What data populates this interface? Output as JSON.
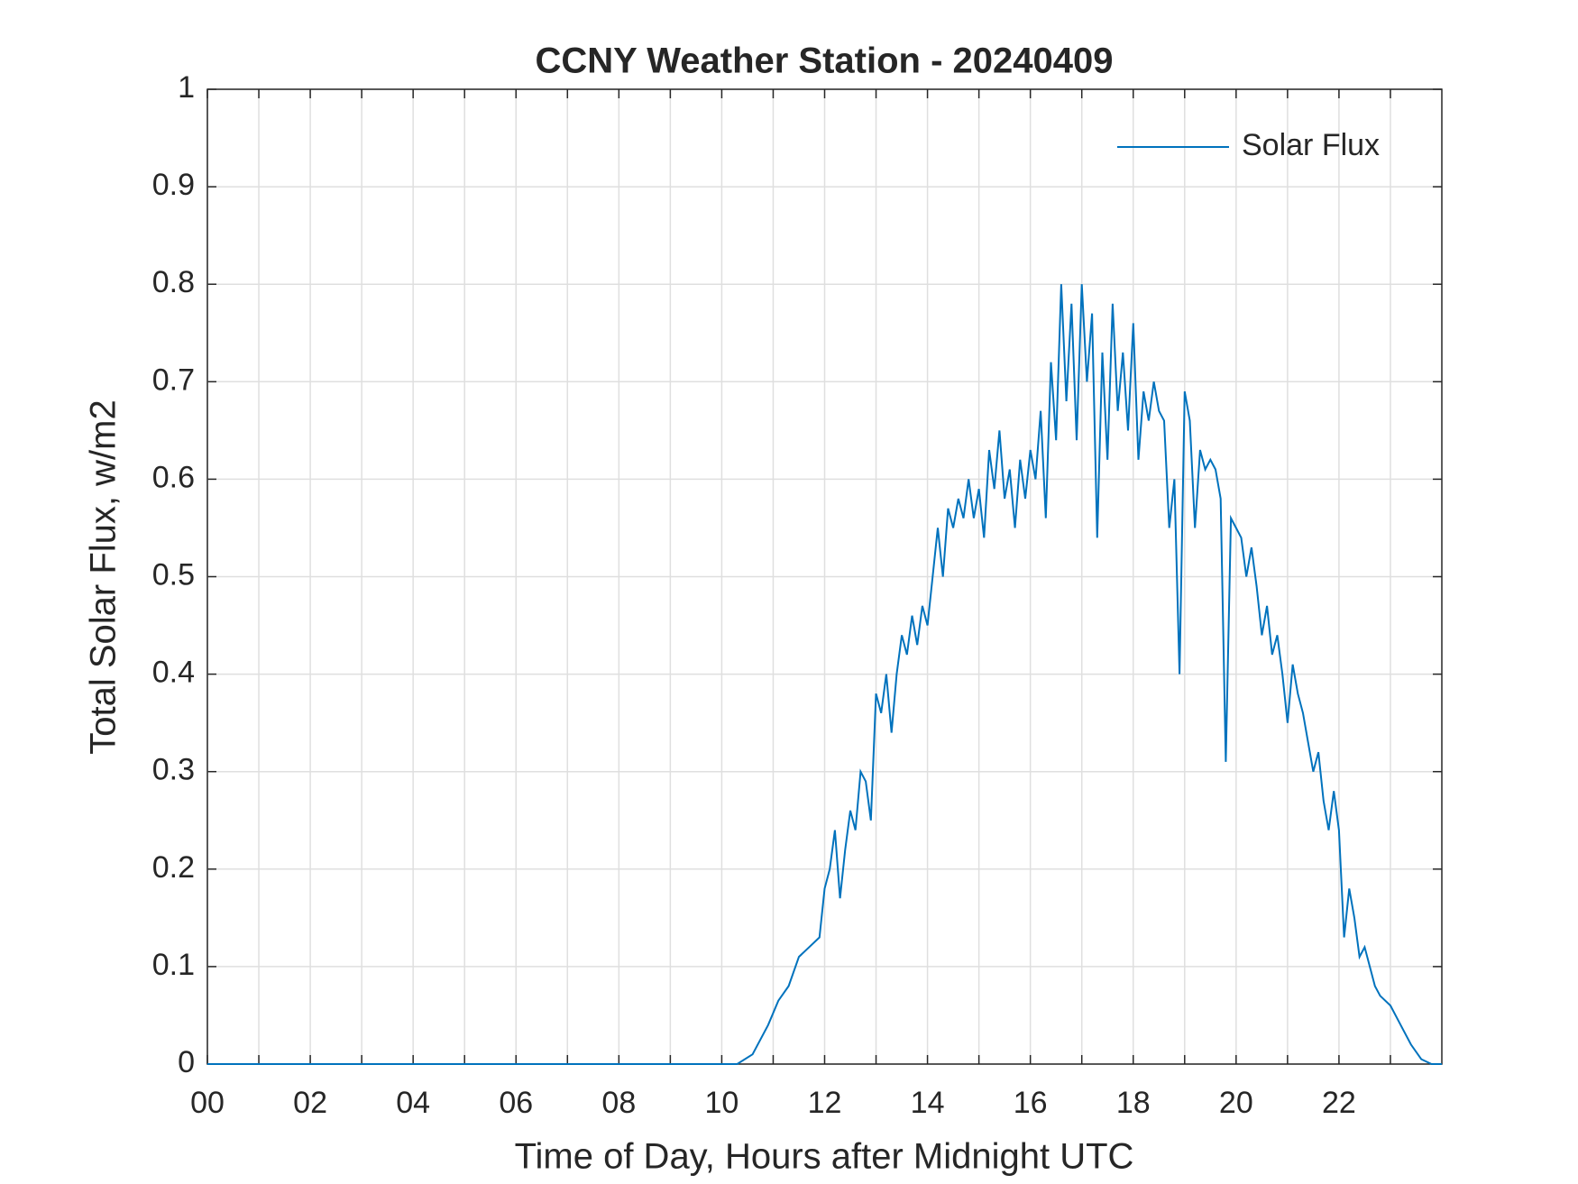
{
  "chart_data": {
    "type": "line",
    "title": "CCNY Weather Station - 20240409",
    "xlabel": "Time of Day, Hours after Midnight UTC",
    "ylabel": "Total Solar Flux, w/m2",
    "x": [
      0,
      10.3,
      10.6,
      10.9,
      11.1,
      11.3,
      11.5,
      11.7,
      11.9,
      12.0,
      12.1,
      12.2,
      12.3,
      12.4,
      12.5,
      12.6,
      12.7,
      12.8,
      12.9,
      13.0,
      13.1,
      13.2,
      13.3,
      13.4,
      13.5,
      13.6,
      13.7,
      13.8,
      13.9,
      14.0,
      14.1,
      14.2,
      14.3,
      14.4,
      14.5,
      14.6,
      14.7,
      14.8,
      14.9,
      15.0,
      15.1,
      15.2,
      15.3,
      15.4,
      15.5,
      15.6,
      15.7,
      15.8,
      15.9,
      16.0,
      16.1,
      16.2,
      16.3,
      16.4,
      16.5,
      16.6,
      16.7,
      16.8,
      16.9,
      17.0,
      17.1,
      17.2,
      17.3,
      17.4,
      17.5,
      17.6,
      17.7,
      17.8,
      17.9,
      18.0,
      18.1,
      18.2,
      18.3,
      18.4,
      18.5,
      18.6,
      18.7,
      18.8,
      18.9,
      19.0,
      19.1,
      19.2,
      19.3,
      19.4,
      19.5,
      19.6,
      19.7,
      19.8,
      19.9,
      20.0,
      20.1,
      20.2,
      20.3,
      20.4,
      20.5,
      20.6,
      20.7,
      20.8,
      20.9,
      21.0,
      21.1,
      21.2,
      21.3,
      21.4,
      21.5,
      21.6,
      21.7,
      21.8,
      21.9,
      22.0,
      22.1,
      22.2,
      22.3,
      22.4,
      22.5,
      22.6,
      22.7,
      22.8,
      23.0,
      23.2,
      23.4,
      23.6,
      23.8,
      24
    ],
    "series": [
      {
        "name": "Solar Flux",
        "color": "#0072bd",
        "values": [
          0,
          0,
          0.01,
          0.04,
          0.065,
          0.08,
          0.11,
          0.12,
          0.13,
          0.18,
          0.2,
          0.24,
          0.17,
          0.22,
          0.26,
          0.24,
          0.3,
          0.29,
          0.25,
          0.38,
          0.36,
          0.4,
          0.34,
          0.4,
          0.44,
          0.42,
          0.46,
          0.43,
          0.47,
          0.45,
          0.5,
          0.55,
          0.5,
          0.57,
          0.55,
          0.58,
          0.56,
          0.6,
          0.56,
          0.59,
          0.54,
          0.63,
          0.59,
          0.65,
          0.58,
          0.61,
          0.55,
          0.62,
          0.58,
          0.63,
          0.6,
          0.67,
          0.56,
          0.72,
          0.64,
          0.8,
          0.68,
          0.78,
          0.64,
          0.8,
          0.7,
          0.77,
          0.54,
          0.73,
          0.62,
          0.78,
          0.67,
          0.73,
          0.65,
          0.76,
          0.62,
          0.69,
          0.66,
          0.7,
          0.67,
          0.66,
          0.55,
          0.6,
          0.4,
          0.69,
          0.66,
          0.55,
          0.63,
          0.61,
          0.62,
          0.61,
          0.58,
          0.31,
          0.56,
          0.55,
          0.54,
          0.5,
          0.53,
          0.49,
          0.44,
          0.47,
          0.42,
          0.44,
          0.4,
          0.35,
          0.41,
          0.38,
          0.36,
          0.33,
          0.3,
          0.32,
          0.27,
          0.24,
          0.28,
          0.24,
          0.13,
          0.18,
          0.15,
          0.11,
          0.12,
          0.1,
          0.08,
          0.07,
          0.06,
          0.04,
          0.02,
          0.005,
          0,
          0
        ]
      }
    ],
    "xlim": [
      0,
      24
    ],
    "xticks": [
      {
        "value": 0,
        "label": "00"
      },
      {
        "value": 2,
        "label": "02"
      },
      {
        "value": 4,
        "label": "04"
      },
      {
        "value": 6,
        "label": "06"
      },
      {
        "value": 8,
        "label": "08"
      },
      {
        "value": 10,
        "label": "10"
      },
      {
        "value": 12,
        "label": "12"
      },
      {
        "value": 14,
        "label": "14"
      },
      {
        "value": 16,
        "label": "16"
      },
      {
        "value": 18,
        "label": "18"
      },
      {
        "value": 20,
        "label": "20"
      },
      {
        "value": 22,
        "label": "22"
      }
    ],
    "xminorticks": [
      1,
      3,
      5,
      7,
      9,
      11,
      13,
      15,
      17,
      19,
      21,
      23
    ],
    "ylim": [
      0,
      1
    ],
    "yticks": [
      0,
      0.1,
      0.2,
      0.3,
      0.4,
      0.5,
      0.6,
      0.7,
      0.8,
      0.9,
      1
    ],
    "grid": true,
    "legend": "upper right"
  }
}
